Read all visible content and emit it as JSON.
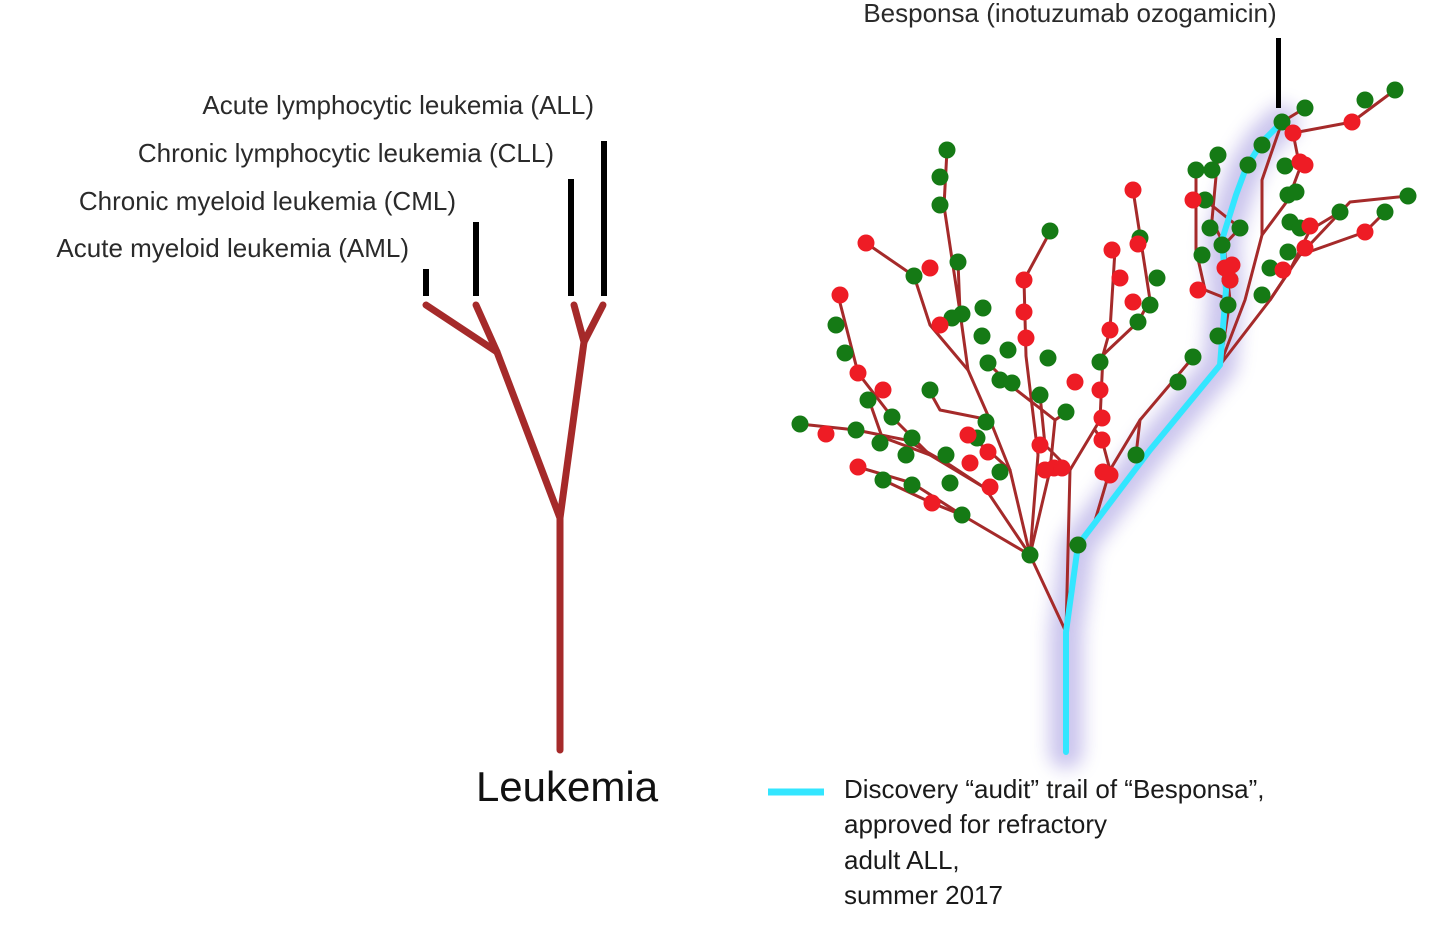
{
  "left_tree": {
    "root_label": "Leukemia",
    "subtypes": [
      {
        "label": "Acute lymphocytic leukemia (ALL)"
      },
      {
        "label": "Chronic lymphocytic leukemia (CLL)"
      },
      {
        "label": "Chronic myeloid leukemia (CML)"
      },
      {
        "label": "Acute myeloid leukemia (AML)"
      }
    ]
  },
  "right_tree": {
    "drug_label": "Besponsa (inotuzumab ozogamicin)"
  },
  "legend": {
    "lines": [
      "Discovery “audit” trail of “Besponsa”,",
      "approved for refractory",
      "adult ALL,",
      "summer 2017"
    ]
  },
  "colors": {
    "branch": "#a52a2a",
    "node_green": "#157a15",
    "node_red": "#ee1c25",
    "trail": "#33e6ff",
    "marker": "#000000"
  }
}
